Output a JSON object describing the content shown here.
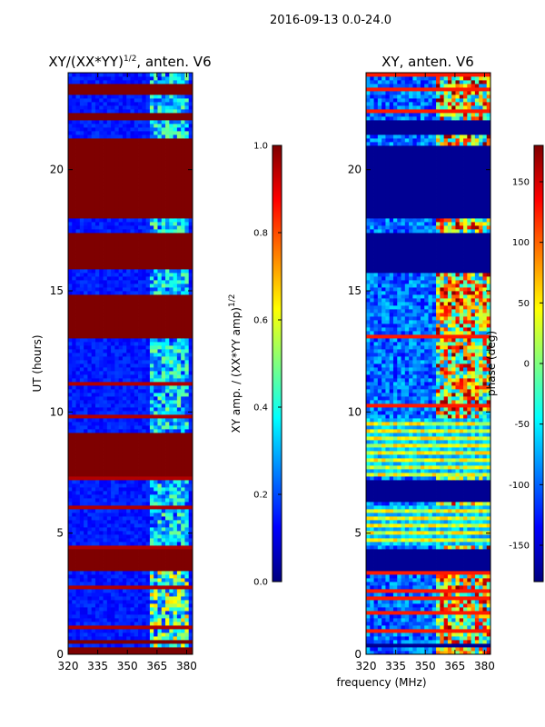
{
  "suptitle": "2016-09-13 0.0-24.0",
  "colors": {
    "jet": [
      "#00007f",
      "#0000ff",
      "#007fff",
      "#00ffff",
      "#7fff7f",
      "#ffff00",
      "#ff7f00",
      "#ff0000",
      "#7f0000"
    ],
    "background": "#00007f",
    "saturated": "#7f0000"
  },
  "chart_data": [
    {
      "type": "heatmap",
      "title_main": "XY/(XX*YY)",
      "title_sup": "1/2",
      "title_rest": ", anten. V6",
      "xlabel": "",
      "ylabel": "UT (hours)",
      "xlim": [
        320,
        383
      ],
      "ylim": [
        0,
        24
      ],
      "xticks": [
        320,
        335,
        350,
        365,
        380
      ],
      "yticks": [
        0,
        5,
        10,
        15,
        20
      ],
      "colorbar": {
        "label_main": "XY amp. / (XX*YY amp)",
        "label_sup": "1/2",
        "range": [
          0.0,
          1.0
        ],
        "ticks": [
          "0.0",
          "0.2",
          "0.4",
          "0.6",
          "0.8",
          "1.0"
        ],
        "tick_values": [
          0.0,
          0.2,
          0.4,
          0.6,
          0.8,
          1.0
        ]
      },
      "saturated_blocks_hours": [
        [
          0.0,
          0.25
        ],
        [
          0.5,
          0.6
        ],
        [
          3.4,
          4.3
        ],
        [
          7.4,
          9.1
        ],
        [
          13.0,
          14.9
        ],
        [
          15.9,
          17.4
        ],
        [
          18.0,
          21.3
        ],
        [
          22.0,
          22.3
        ],
        [
          23.1,
          23.6
        ]
      ],
      "background_level": 0.15,
      "bright_band_mhz": [
        361,
        382
      ]
    },
    {
      "type": "heatmap",
      "title": "XY, anten. V6",
      "xlabel": "frequency (MHz)",
      "ylabel": "",
      "xlim": [
        320,
        383
      ],
      "ylim": [
        0,
        24
      ],
      "xticks": [
        320,
        335,
        350,
        365,
        380
      ],
      "yticks": [
        0,
        5,
        10,
        15,
        20
      ],
      "colorbar": {
        "label": "phase (deg)",
        "range": [
          -180,
          180
        ],
        "ticks": [
          "-150",
          "-100",
          "-50",
          "0",
          "50",
          "100",
          "150"
        ],
        "tick_values": [
          -150,
          -100,
          -50,
          0,
          50,
          100,
          150
        ]
      },
      "empty_blocks_hours": [
        [
          0.3,
          0.45
        ],
        [
          3.4,
          4.4
        ],
        [
          6.3,
          7.2
        ],
        [
          15.8,
          17.4
        ],
        [
          18.0,
          21.0
        ],
        [
          21.5,
          22.0
        ]
      ],
      "striped_block_hours": [
        [
          4.5,
          6.2
        ],
        [
          7.3,
          9.8
        ]
      ],
      "active_band_mhz": [
        356,
        383
      ]
    }
  ]
}
